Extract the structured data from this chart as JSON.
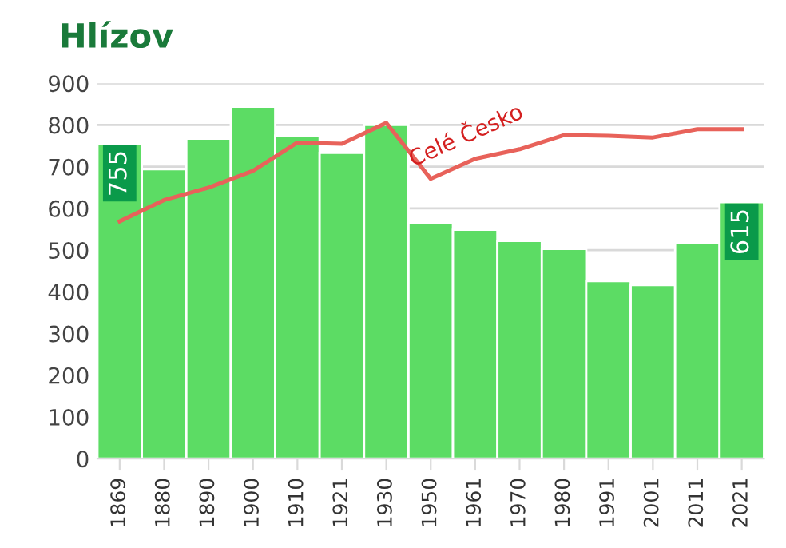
{
  "chart_data": {
    "type": "bar",
    "title": "Hlízov",
    "categories": [
      "1869",
      "1880",
      "1890",
      "1900",
      "1910",
      "1921",
      "1930",
      "1950",
      "1961",
      "1970",
      "1980",
      "1991",
      "2001",
      "2011",
      "2021"
    ],
    "series": [
      {
        "color": "#5cdc64",
        "values": [
          755,
          694,
          767,
          844,
          775,
          733,
          800,
          564,
          549,
          522,
          503,
          426,
          416,
          518,
          615
        ],
        "value_labels": [
          "755",
          null,
          null,
          null,
          null,
          null,
          null,
          null,
          null,
          null,
          null,
          null,
          null,
          null,
          "615"
        ]
      },
      {
        "type": "line",
        "name": "Celé Česko",
        "color": "#e8625a",
        "values": [
          569,
          620,
          650,
          690,
          758,
          755,
          805,
          671,
          719,
          742,
          776,
          774,
          770,
          790,
          790
        ]
      }
    ],
    "ylim": [
      0,
      900
    ],
    "yticks": [
      0,
      100,
      200,
      300,
      400,
      500,
      600,
      700,
      800,
      900
    ],
    "grid": "y",
    "legend": false
  }
}
